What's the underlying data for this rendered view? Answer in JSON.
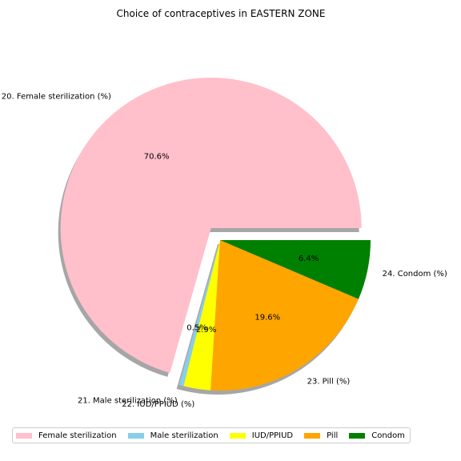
{
  "chart_data": {
    "type": "pie",
    "title": "Choice of contraceptives in EASTERN ZONE",
    "slices": [
      {
        "label": "20. Female sterilization (%)",
        "value": 70.6,
        "pct_label": "70.6%",
        "color": "#ffc0cb",
        "exploded": true
      },
      {
        "label": "21. Male sterilization (%)",
        "value": 0.5,
        "pct_label": "0.5%",
        "color": "#87ceeb",
        "exploded": false
      },
      {
        "label": "22. IUD/PPIUD (%)",
        "value": 2.9,
        "pct_label": "2.9%",
        "color": "#ffff00",
        "exploded": false
      },
      {
        "label": "23. Pill (%)",
        "value": 19.6,
        "pct_label": "19.6%",
        "color": "#ffa500",
        "exploded": false
      },
      {
        "label": "24. Condom (%)",
        "value": 6.4,
        "pct_label": "6.4%",
        "color": "#008000",
        "exploded": false
      }
    ],
    "start_angle_deg": 0,
    "direction": "counterclockwise",
    "shadow": true,
    "legend": {
      "placement": "bottom",
      "entries": [
        "Female sterilization",
        "Male sterilization",
        "IUD/PPIUD",
        "Pill",
        "Condom"
      ]
    }
  }
}
